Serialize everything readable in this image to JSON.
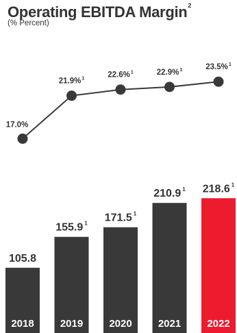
{
  "title": "Operating EBITDA Margin",
  "title_superscript": "2",
  "subtitle": "(% Percent)",
  "footnote_mark": "1",
  "colors": {
    "bar": "#3a3939",
    "highlight": "#ec1c2e",
    "text": "#333333",
    "label_text": "#ffffff"
  },
  "chart_data": {
    "type": "bar",
    "categories": [
      "2018",
      "2019",
      "2020",
      "2021",
      "2022"
    ],
    "highlight_category": "2022",
    "series": [
      {
        "values": [
          105.8,
          155.9,
          171.5,
          210.9,
          218.6
        ],
        "labels": [
          "105.8",
          "155.9",
          "171.5",
          "210.9",
          "218.6"
        ],
        "footnoted": [
          false,
          true,
          true,
          true,
          true
        ]
      }
    ],
    "line_series": {
      "type": "line",
      "values": [
        17.0,
        21.9,
        22.6,
        22.9,
        23.5
      ],
      "labels": [
        "17.0%",
        "21.9%",
        "22.6%",
        "22.9%",
        "23.5%"
      ],
      "footnoted": [
        false,
        true,
        true,
        true,
        true
      ]
    }
  }
}
